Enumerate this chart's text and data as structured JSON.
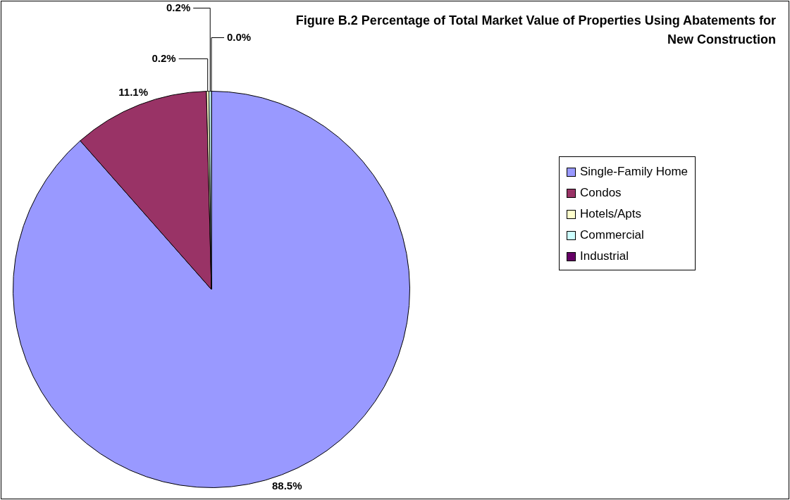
{
  "chart_data": {
    "type": "pie",
    "title": "Figure B.2 Percentage of Total Market Value of Properties Using Abatements for New Construction",
    "categories": [
      "Single-Family Home",
      "Condos",
      "Hotels/Apts",
      "Commercial",
      "Industrial"
    ],
    "values": [
      88.5,
      11.1,
      0.2,
      0.2,
      0.0
    ],
    "colors": [
      "#9999ff",
      "#993366",
      "#ffffcc",
      "#ccffff",
      "#660066"
    ],
    "value_labels": [
      "88.5%",
      "11.1%",
      "0.2%",
      "0.2%",
      "0.0%"
    ],
    "legend": "right"
  }
}
